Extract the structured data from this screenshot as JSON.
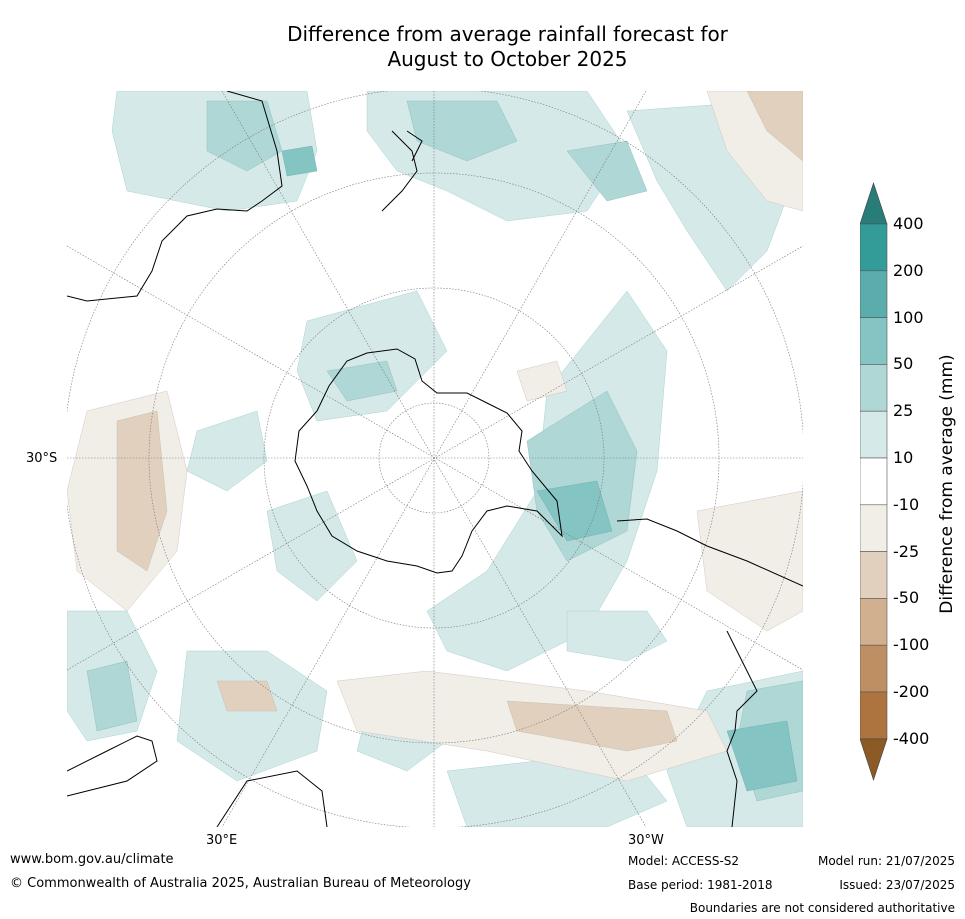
{
  "title_line1": "Difference from average rainfall forecast for",
  "title_line2": "August to October 2025",
  "map": {
    "lat_label": "30°S",
    "lon_labels": [
      "30°E",
      "30°W"
    ]
  },
  "colorbar": {
    "label": "Difference from average (mm)",
    "ticks": [
      "400",
      "200",
      "100",
      "50",
      "25",
      "10",
      "-10",
      "-25",
      "-50",
      "-100",
      "-200",
      "-400"
    ],
    "colors": {
      "over": "#287c7a",
      "c400_200": "#339c98",
      "c200_100": "#5aadab",
      "c100_50": "#84c4c2",
      "c50_25": "#aed7d6",
      "c25_10": "#d5e9e8",
      "neutral": "#ffffff",
      "cm10_25": "#f1ede7",
      "cm25_50": "#e2d0bf",
      "cm50_100": "#d0b08f",
      "cm100_200": "#be8f63",
      "cm200_400": "#ad7440",
      "under": "#8c5a24"
    }
  },
  "footer": {
    "url": "www.bom.gov.au/climate",
    "copyright": "© Commonwealth of Australia 2025, Australian Bureau of Meteorology",
    "model": "Model: ACCESS-S2",
    "base_period": "Base period: 1981-2018",
    "model_run": "Model run: 21/07/2025",
    "issued": "Issued: 23/07/2025",
    "disclaimer": "Boundaries are not considered authoritative"
  }
}
